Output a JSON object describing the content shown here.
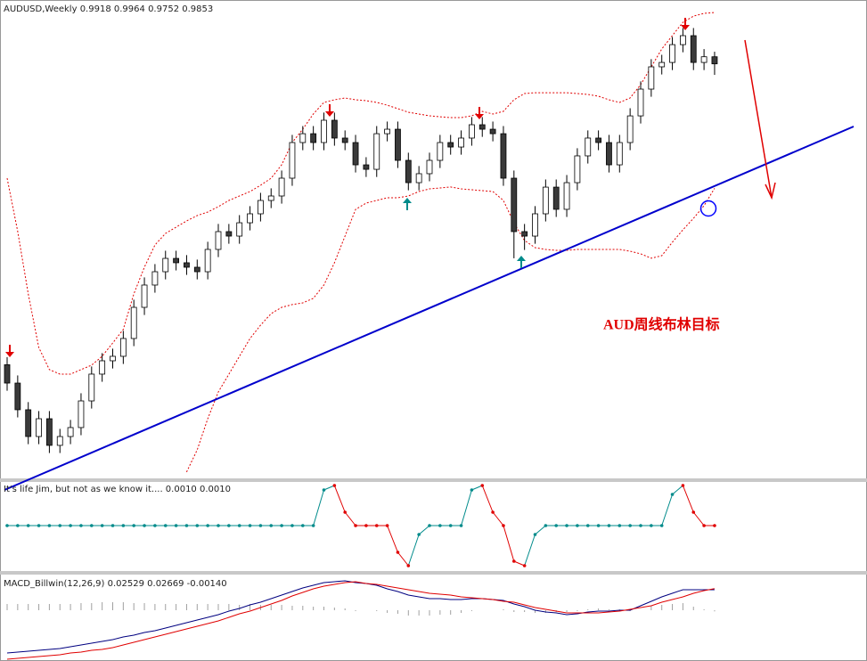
{
  "chart_data": [
    {
      "type": "candlestick",
      "title": "AUDUSD,Weekly",
      "open": [
        0.71,
        0.6932,
        0.6688,
        0.6443,
        0.6606,
        0.6362,
        0.6443,
        0.6525,
        0.6769,
        0.7014,
        0.7136,
        0.7177,
        0.734,
        0.7625,
        0.7829,
        0.7951,
        0.8073,
        0.8033,
        0.7992,
        0.7951,
        0.8155,
        0.8318,
        0.8277,
        0.8399,
        0.8481,
        0.8603,
        0.8644,
        0.8807,
        0.9133,
        0.9214,
        0.9133,
        0.9337,
        0.9174,
        0.9133,
        0.8929,
        0.8888,
        0.9214,
        0.9255,
        0.897,
        0.8766,
        0.8848,
        0.897,
        0.9133,
        0.9092,
        0.9174,
        0.9296,
        0.9255,
        0.9214,
        0.8807,
        0.8318,
        0.8277,
        0.8481,
        0.8725,
        0.8522,
        0.8766,
        0.9011,
        0.9174,
        0.9133,
        0.8929,
        0.9133,
        0.9377,
        0.9622,
        0.9826,
        0.9866,
        1.0029,
        1.0111,
        0.9866,
        0.9918
      ],
      "high": [
        0.717,
        0.7002,
        0.6758,
        0.6676,
        0.6676,
        0.6513,
        0.6595,
        0.6839,
        0.7084,
        0.7206,
        0.7247,
        0.741,
        0.7695,
        0.7899,
        0.8021,
        0.8143,
        0.8143,
        0.8103,
        0.8062,
        0.8225,
        0.8388,
        0.8388,
        0.8469,
        0.8551,
        0.8673,
        0.8714,
        0.8877,
        0.9203,
        0.9284,
        0.9284,
        0.9407,
        0.9407,
        0.9244,
        0.9203,
        0.8999,
        0.9284,
        0.9325,
        0.9325,
        0.904,
        0.8918,
        0.904,
        0.9203,
        0.9203,
        0.9244,
        0.9366,
        0.9366,
        0.9325,
        0.9284,
        0.8877,
        0.8388,
        0.8551,
        0.8795,
        0.8795,
        0.8836,
        0.9081,
        0.9244,
        0.9244,
        0.9203,
        0.9203,
        0.9447,
        0.9692,
        0.9896,
        0.9936,
        1.0099,
        1.0181,
        1.0181,
        0.9988,
        0.9964
      ],
      "low": [
        0.6862,
        0.6618,
        0.6373,
        0.6373,
        0.6292,
        0.6292,
        0.6373,
        0.6455,
        0.6699,
        0.6944,
        0.7066,
        0.7107,
        0.727,
        0.7555,
        0.7759,
        0.7881,
        0.7963,
        0.7922,
        0.7881,
        0.7881,
        0.8085,
        0.8207,
        0.8207,
        0.8329,
        0.8411,
        0.8533,
        0.8574,
        0.8737,
        0.9063,
        0.9063,
        0.9063,
        0.9104,
        0.9063,
        0.8859,
        0.8818,
        0.8818,
        0.9144,
        0.89,
        0.8696,
        0.8696,
        0.8778,
        0.89,
        0.9022,
        0.9022,
        0.9104,
        0.9185,
        0.9144,
        0.8737,
        0.8074,
        0.815,
        0.8207,
        0.8411,
        0.8452,
        0.8452,
        0.8696,
        0.8941,
        0.9063,
        0.8859,
        0.8859,
        0.9063,
        0.9307,
        0.9552,
        0.9756,
        0.9796,
        0.9959,
        0.9796,
        0.9796,
        0.9752
      ],
      "close": [
        0.6932,
        0.6688,
        0.6443,
        0.6606,
        0.6362,
        0.6443,
        0.6525,
        0.6769,
        0.7014,
        0.7136,
        0.7177,
        0.734,
        0.7625,
        0.7829,
        0.7951,
        0.8073,
        0.8033,
        0.7992,
        0.7951,
        0.8155,
        0.8318,
        0.8277,
        0.8399,
        0.8481,
        0.8603,
        0.8644,
        0.8807,
        0.9133,
        0.9214,
        0.9133,
        0.9337,
        0.9174,
        0.9133,
        0.8929,
        0.8888,
        0.9214,
        0.9255,
        0.897,
        0.8766,
        0.8848,
        0.897,
        0.9133,
        0.9092,
        0.9174,
        0.9296,
        0.9255,
        0.9214,
        0.8807,
        0.8318,
        0.8277,
        0.8481,
        0.8725,
        0.8522,
        0.8766,
        0.9011,
        0.9174,
        0.9133,
        0.8929,
        0.9133,
        0.9377,
        0.9622,
        0.9826,
        0.9866,
        1.0029,
        1.0111,
        0.9866,
        0.9918,
        0.9853
      ],
      "up_color": "#ffffff",
      "down_color": "#3a3a3a",
      "outline_color": "#000000",
      "bollinger": {
        "color": "#e00000",
        "upper": [
          0.8807,
          0.8318,
          0.7748,
          0.7258,
          0.7055,
          0.7014,
          0.7014,
          0.7055,
          0.7096,
          0.7177,
          0.7299,
          0.7422,
          0.7748,
          0.7992,
          0.8196,
          0.8302,
          0.8359,
          0.8416,
          0.8465,
          0.8497,
          0.8546,
          0.8603,
          0.8644,
          0.8685,
          0.8742,
          0.8807,
          0.8929,
          0.9133,
          0.9255,
          0.9394,
          0.95,
          0.9524,
          0.9541,
          0.9524,
          0.9516,
          0.95,
          0.9475,
          0.9443,
          0.941,
          0.9394,
          0.9378,
          0.9369,
          0.9361,
          0.9361,
          0.9378,
          0.9418,
          0.9394,
          0.9418,
          0.9524,
          0.9581,
          0.9589,
          0.9589,
          0.9589,
          0.9589,
          0.9581,
          0.9573,
          0.9557,
          0.9524,
          0.95,
          0.9541,
          0.9663,
          0.9826,
          0.9989,
          1.0111,
          1.0233,
          1.029,
          1.0315,
          1.0323
        ],
        "lower": [
          null,
          null,
          null,
          null,
          null,
          null,
          null,
          null,
          null,
          null,
          null,
          null,
          null,
          null,
          null,
          null,
          null,
          0.6118,
          0.6321,
          0.6607,
          0.6851,
          0.7014,
          0.7177,
          0.734,
          0.7462,
          0.7568,
          0.7625,
          0.765,
          0.7666,
          0.7707,
          0.7829,
          0.8033,
          0.8277,
          0.8522,
          0.8579,
          0.8603,
          0.8628,
          0.8628,
          0.8644,
          0.8685,
          0.8709,
          0.8717,
          0.8726,
          0.8709,
          0.8701,
          0.8693,
          0.8685,
          0.8603,
          0.8399,
          0.8237,
          0.8171,
          0.8155,
          0.8147,
          0.8147,
          0.8155,
          0.8155,
          0.8155,
          0.8155,
          0.8155,
          0.8139,
          0.8115,
          0.8074,
          0.8098,
          0.822,
          0.8334,
          0.8439,
          0.8555,
          0.8714
        ]
      },
      "ylim": [
        0.606,
        1.0421
      ],
      "annotation": "AUD周线布林目标"
    },
    {
      "type": "dot-line",
      "title": "It's life Jim, but not as we know it.... 0.0010 0.0010",
      "values": [
        0.001,
        0.001,
        0.001,
        0.001,
        0.001,
        0.001,
        0.001,
        0.001,
        0.001,
        0.001,
        0.001,
        0.001,
        0.001,
        0.001,
        0.001,
        0.001,
        0.001,
        0.001,
        0.001,
        0.001,
        0.001,
        0.001,
        0.001,
        0.001,
        0.001,
        0.001,
        0.001,
        0.001,
        0.001,
        0.001,
        0.017,
        0.019,
        0.007,
        0.001,
        0.001,
        0.001,
        0.001,
        -0.011,
        -0.017,
        -0.003,
        0.001,
        0.001,
        0.001,
        0.001,
        0.017,
        0.019,
        0.007,
        0.001,
        -0.015,
        -0.017,
        -0.003,
        0.001,
        0.001,
        0.001,
        0.001,
        0.001,
        0.001,
        0.001,
        0.001,
        0.001,
        0.001,
        0.001,
        0.001,
        0.015,
        0.019,
        0.007,
        0.001,
        0.001
      ],
      "colors": [
        "#008b8b",
        "#008b8b",
        "#008b8b",
        "#008b8b",
        "#008b8b",
        "#008b8b",
        "#008b8b",
        "#008b8b",
        "#008b8b",
        "#008b8b",
        "#008b8b",
        "#008b8b",
        "#008b8b",
        "#008b8b",
        "#008b8b",
        "#008b8b",
        "#008b8b",
        "#008b8b",
        "#008b8b",
        "#008b8b",
        "#008b8b",
        "#008b8b",
        "#008b8b",
        "#008b8b",
        "#008b8b",
        "#008b8b",
        "#008b8b",
        "#008b8b",
        "#008b8b",
        "#008b8b",
        "#008b8b",
        "#e00000",
        "#e00000",
        "#e00000",
        "#e00000",
        "#e00000",
        "#e00000",
        "#e00000",
        "#e00000",
        "#008b8b",
        "#008b8b",
        "#008b8b",
        "#008b8b",
        "#008b8b",
        "#008b8b",
        "#e00000",
        "#e00000",
        "#e00000",
        "#e00000",
        "#e00000",
        "#008b8b",
        "#008b8b",
        "#008b8b",
        "#008b8b",
        "#008b8b",
        "#008b8b",
        "#008b8b",
        "#008b8b",
        "#008b8b",
        "#008b8b",
        "#008b8b",
        "#008b8b",
        "#008b8b",
        "#008b8b",
        "#e00000",
        "#e00000",
        "#e00000",
        "#e00000"
      ],
      "rise_color": "#008b8b",
      "fall_color": "#e00000",
      "ylim": [
        -0.019,
        0.021
      ]
    },
    {
      "type": "macd",
      "title": "MACD_Billwin(12,26,9) 0.02529 0.02669 -0.00140",
      "series": [
        {
          "color": "#000080",
          "values": [
            -0.0528,
            -0.0517,
            -0.0506,
            -0.0495,
            -0.0484,
            -0.0473,
            -0.0451,
            -0.0429,
            -0.0407,
            -0.0385,
            -0.0363,
            -0.033,
            -0.0308,
            -0.0275,
            -0.0253,
            -0.022,
            -0.0187,
            -0.0154,
            -0.0121,
            -0.0088,
            -0.0055,
            -0.0011,
            0.0022,
            0.0066,
            0.0099,
            0.0143,
            0.0187,
            0.0231,
            0.0275,
            0.0308,
            0.0341,
            0.0352,
            0.0363,
            0.0341,
            0.033,
            0.0308,
            0.0264,
            0.0231,
            0.0187,
            0.0165,
            0.0143,
            0.0143,
            0.0132,
            0.0132,
            0.0143,
            0.0143,
            0.0132,
            0.0121,
            0.0077,
            0.0044,
            0,
            -0.0022,
            -0.0033,
            -0.0055,
            -0.0044,
            -0.0022,
            -0.0011,
            -0.0011,
            0,
            0,
            0.0055,
            0.011,
            0.0165,
            0.0209,
            0.0253,
            0.0253,
            0.0253,
            0.02529
          ]
        },
        {
          "color": "#e00000",
          "values": [
            -0.0605,
            -0.0594,
            -0.0583,
            -0.0572,
            -0.0561,
            -0.055,
            -0.0528,
            -0.0517,
            -0.0495,
            -0.0484,
            -0.0462,
            -0.0429,
            -0.0396,
            -0.0363,
            -0.033,
            -0.0297,
            -0.0264,
            -0.0231,
            -0.0198,
            -0.0165,
            -0.0132,
            -0.0088,
            -0.0044,
            -0.0011,
            0.0033,
            0.0077,
            0.0121,
            0.0176,
            0.022,
            0.0264,
            0.0297,
            0.0319,
            0.0341,
            0.0352,
            0.033,
            0.0319,
            0.0297,
            0.0275,
            0.0253,
            0.0231,
            0.0209,
            0.0198,
            0.0187,
            0.0165,
            0.0154,
            0.0143,
            0.0132,
            0.011,
            0.0099,
            0.0066,
            0.0033,
            0.0011,
            -0.0011,
            -0.0033,
            -0.0033,
            -0.0033,
            -0.0033,
            -0.0022,
            -0.0011,
            0.0011,
            0.0033,
            0.0055,
            0.0099,
            0.0132,
            0.0165,
            0.0209,
            0.0242,
            0.02669
          ]
        }
      ],
      "histogram": {
        "color": "#a0a0a0",
        "values": [
          0.0077,
          0.0077,
          0.0077,
          0.0077,
          0.0077,
          0.0077,
          0.0077,
          0.0088,
          0.0088,
          0.0099,
          0.0099,
          0.0099,
          0.0088,
          0.0088,
          0.0077,
          0.0077,
          0.0077,
          0.0077,
          0.0077,
          0.0077,
          0.0077,
          0.0077,
          0.0066,
          0.0077,
          0.0066,
          0.0066,
          0.0066,
          0.0055,
          0.0055,
          0.0044,
          0.0044,
          0.0033,
          0.0022,
          -0.0011,
          0,
          -0.0011,
          -0.0033,
          -0.0044,
          -0.0066,
          -0.0066,
          -0.0066,
          -0.0055,
          -0.0055,
          -0.0033,
          -0.0011,
          0,
          0,
          0.0011,
          -0.0022,
          -0.0022,
          -0.0033,
          -0.0033,
          -0.0022,
          -0.0022,
          -0.0011,
          0.0011,
          0.0022,
          0.0011,
          0.0011,
          -0.0011,
          0,
          0.0055,
          0.0066,
          0.0077,
          0.0088,
          0.0044,
          0.0011,
          -0.0014
        ]
      },
      "ylim": [
        -0.0627,
        0.0407
      ]
    }
  ]
}
